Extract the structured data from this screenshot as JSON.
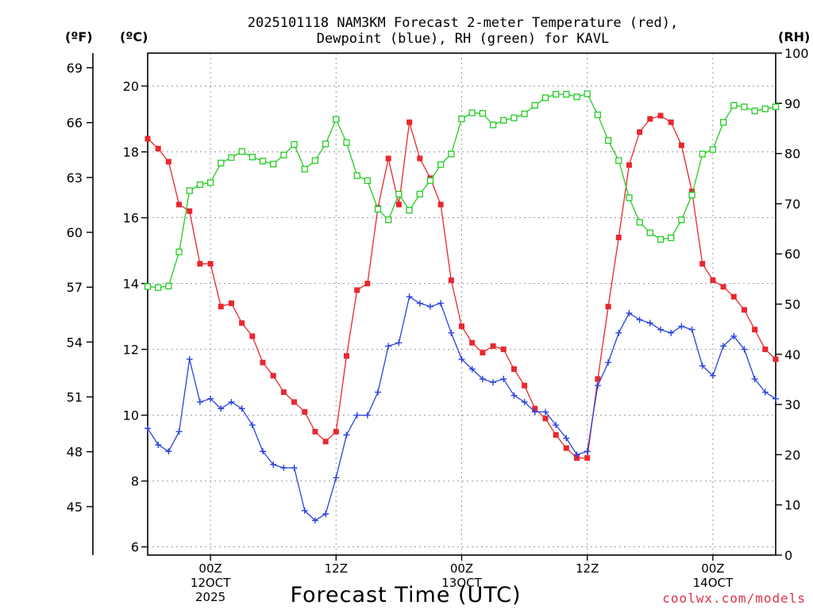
{
  "chart_data": {
    "type": "line",
    "title_line1": "2025101118 NAM3KM Forecast 2-meter Temperature (red),",
    "title_line2": "Dewpoint (blue), RH (green) for KAVL",
    "unit_f": "(ºF)",
    "unit_c": "(ºC)",
    "unit_rh": "(RH)",
    "xlabel": "Forecast Time (UTC)",
    "credit": "coolwx.com/models",
    "x_range_hours": [
      18,
      78
    ],
    "celsius_range": [
      5.75,
      21.0
    ],
    "rh_range": [
      0,
      100
    ],
    "celsius_ticks": [
      6,
      8,
      10,
      12,
      14,
      16,
      18,
      20
    ],
    "fahrenheit_ticks": [
      45,
      48,
      51,
      54,
      57,
      60,
      63,
      66,
      69
    ],
    "rh_ticks": [
      0,
      10,
      20,
      30,
      40,
      50,
      60,
      70,
      80,
      90,
      100
    ],
    "grid_hours": [
      24,
      36,
      48,
      60,
      72
    ],
    "x_ticks": [
      {
        "hour": 24,
        "lines": [
          "00Z",
          "12OCT",
          "2025"
        ]
      },
      {
        "hour": 36,
        "lines": [
          "12Z"
        ]
      },
      {
        "hour": 48,
        "lines": [
          "00Z",
          "13OCT"
        ]
      },
      {
        "hour": 60,
        "lines": [
          "12Z"
        ]
      },
      {
        "hour": 72,
        "lines": [
          "00Z",
          "14OCT"
        ]
      }
    ],
    "hours": [
      18,
      19,
      20,
      21,
      22,
      23,
      24,
      25,
      26,
      27,
      28,
      29,
      30,
      31,
      32,
      33,
      34,
      35,
      36,
      37,
      38,
      39,
      40,
      41,
      42,
      43,
      44,
      45,
      46,
      47,
      48,
      49,
      50,
      51,
      52,
      53,
      54,
      55,
      56,
      57,
      58,
      59,
      60,
      61,
      62,
      63,
      64,
      65,
      66,
      67,
      68,
      69,
      70,
      71,
      72,
      73,
      74,
      75,
      76,
      77,
      78
    ],
    "series": [
      {
        "name": "2-meter Temperature",
        "units": "C",
        "color": "#e8282e",
        "marker": "filled-square",
        "values": [
          18.4,
          18.1,
          17.7,
          16.4,
          16.2,
          14.6,
          14.6,
          13.3,
          13.4,
          12.8,
          12.4,
          11.6,
          11.2,
          10.7,
          10.4,
          10.1,
          9.5,
          9.2,
          9.5,
          11.8,
          13.8,
          14.0,
          16.3,
          17.8,
          16.4,
          18.9,
          17.8,
          17.2,
          16.4,
          14.1,
          12.7,
          12.2,
          11.9,
          12.1,
          12.0,
          11.4,
          10.9,
          10.2,
          9.9,
          9.4,
          9.0,
          8.7,
          8.7,
          11.1,
          13.3,
          15.4,
          17.6,
          18.6,
          19.0,
          19.1,
          18.9,
          18.2,
          16.8,
          14.6,
          14.1,
          13.9,
          13.6,
          13.2,
          12.6,
          12.0,
          11.7
        ]
      },
      {
        "name": "Dewpoint",
        "units": "C",
        "color": "#2a42de",
        "marker": "plus",
        "values": [
          9.6,
          9.1,
          8.9,
          9.5,
          11.7,
          10.4,
          10.5,
          10.2,
          10.4,
          10.2,
          9.7,
          8.9,
          8.5,
          8.4,
          8.4,
          7.1,
          6.8,
          7.0,
          8.1,
          9.4,
          10.0,
          10.0,
          10.7,
          12.1,
          12.2,
          13.6,
          13.4,
          13.3,
          13.4,
          12.5,
          11.7,
          11.4,
          11.1,
          11.0,
          11.1,
          10.6,
          10.4,
          10.1,
          10.1,
          9.7,
          9.3,
          8.8,
          8.9,
          10.9,
          11.6,
          12.5,
          13.1,
          12.9,
          12.8,
          12.6,
          12.5,
          12.7,
          12.6,
          11.5,
          11.2,
          12.1,
          12.4,
          12.0,
          11.1,
          10.7,
          10.5
        ]
      },
      {
        "name": "RH",
        "units": "%",
        "color": "#22cc22",
        "marker": "open-square",
        "values": [
          53.5,
          53.3,
          53.6,
          60.4,
          72.6,
          73.8,
          74.2,
          78.1,
          79.2,
          80.4,
          79.3,
          78.5,
          77.9,
          79.7,
          81.8,
          76.9,
          78.6,
          81.9,
          86.8,
          82.2,
          75.6,
          74.6,
          68.9,
          66.8,
          71.9,
          68.7,
          71.9,
          74.6,
          77.8,
          79.9,
          86.9,
          88.1,
          88.0,
          85.7,
          86.6,
          87.1,
          87.9,
          89.6,
          91.1,
          91.8,
          91.8,
          91.3,
          91.9,
          87.7,
          82.6,
          78.6,
          71.2,
          66.3,
          64.2,
          62.9,
          63.2,
          66.8,
          71.7,
          79.9,
          80.8,
          86.2,
          89.6,
          89.3,
          88.5,
          88.9,
          89.3
        ]
      }
    ]
  }
}
